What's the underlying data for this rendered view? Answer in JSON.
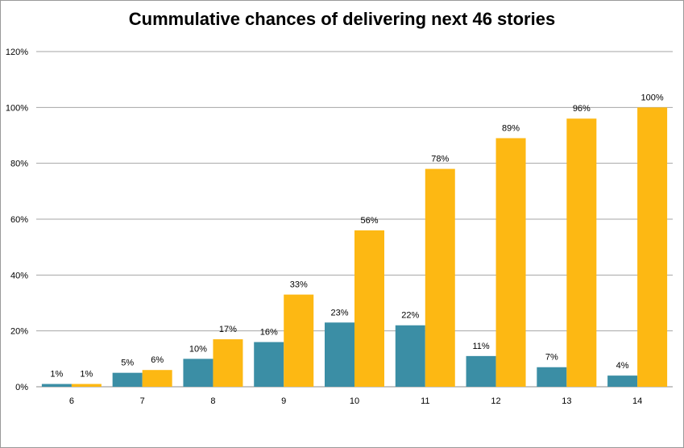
{
  "chart_data": {
    "type": "bar",
    "title": "Cummulative chances of delivering next 46 stories",
    "xlabel": "",
    "ylabel": "",
    "categories": [
      "6",
      "7",
      "8",
      "9",
      "10",
      "11",
      "12",
      "13",
      "14"
    ],
    "series": [
      {
        "color": "#3B8EA5",
        "values": [
          1,
          5,
          10,
          16,
          23,
          22,
          11,
          7,
          4
        ],
        "labels": [
          "1%",
          "5%",
          "10%",
          "16%",
          "23%",
          "22%",
          "11%",
          "7%",
          "4%"
        ]
      },
      {
        "color": "#FDB813",
        "values": [
          1,
          6,
          17,
          33,
          56,
          78,
          89,
          96,
          100
        ],
        "labels": [
          "1%",
          "6%",
          "17%",
          "33%",
          "56%",
          "78%",
          "89%",
          "96%",
          "100%"
        ]
      }
    ],
    "ylim": [
      0,
      120
    ],
    "yticks": [
      0,
      20,
      40,
      60,
      80,
      100,
      120
    ],
    "ytick_labels": [
      "0%",
      "20%",
      "40%",
      "60%",
      "80%",
      "100%",
      "120%"
    ],
    "grid": true,
    "legend": "none"
  }
}
